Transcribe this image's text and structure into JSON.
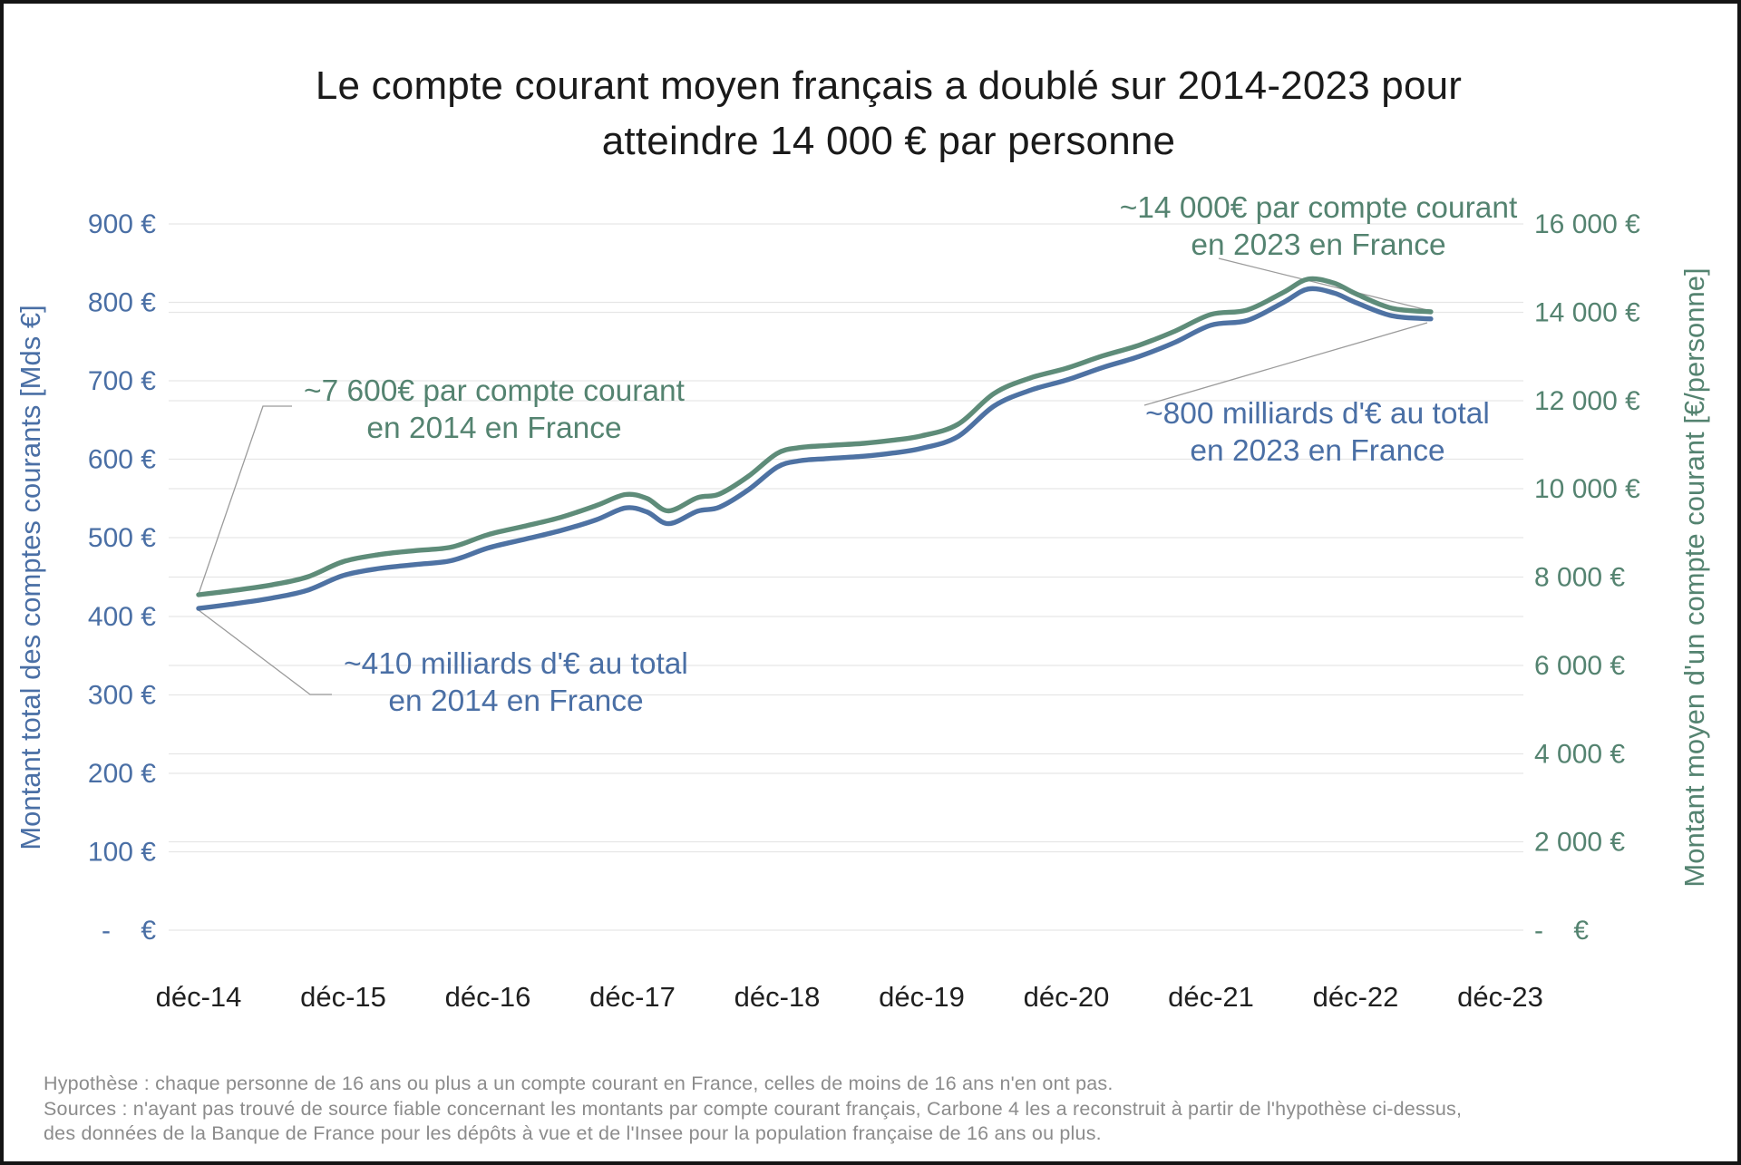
{
  "chart_data": {
    "type": "line",
    "title": "Le compte courant moyen français a doublé sur 2014-2023 pour atteindre 14 000 € par personne",
    "title_lines": [
      "Le compte courant moyen français a doublé sur 2014-2023 pour",
      "atteindre 14 000 € par personne"
    ],
    "x_tick_labels": [
      "déc-14",
      "déc-15",
      "déc-16",
      "déc-17",
      "déc-18",
      "déc-19",
      "déc-20",
      "déc-21",
      "déc-22",
      "déc-23"
    ],
    "x_unit": "années (décembre de chaque année)",
    "grid": true,
    "legend_position": "none",
    "left_axis": {
      "title": "Montant total des comptes courants [Mds €]",
      "min": 0,
      "max": 900,
      "tick_step": 100,
      "tick_labels": [
        "900 €",
        "800 €",
        "700 €",
        "600 €",
        "500 €",
        "400 €",
        "300 €",
        "200 €",
        "100 €",
        "-    €"
      ],
      "color": "#4a6fa5"
    },
    "right_axis": {
      "title": "Montant moyen d'un compte courant [€/personne]",
      "min": 0,
      "max": 16000,
      "tick_step": 2000,
      "tick_labels": [
        "16 000 €",
        "14 000 €",
        "12 000 €",
        "10 000 €",
        "8 000 €",
        "6 000 €",
        "4 000 €",
        "2 000 €",
        "-    €"
      ],
      "color": "#548370"
    },
    "series": [
      {
        "name": "Montant total des comptes courants",
        "unit": "Mds €",
        "axis": "left",
        "color": "#4e72a3",
        "points_t_years_after_dec14_value": [
          [
            0,
            410
          ],
          [
            0.25,
            416
          ],
          [
            0.5,
            423
          ],
          [
            0.75,
            433
          ],
          [
            1,
            452
          ],
          [
            1.25,
            461
          ],
          [
            1.5,
            466
          ],
          [
            1.75,
            471
          ],
          [
            2,
            487
          ],
          [
            2.25,
            498
          ],
          [
            2.5,
            509
          ],
          [
            2.75,
            523
          ],
          [
            2.95,
            538
          ],
          [
            3.1,
            533
          ],
          [
            3.25,
            518
          ],
          [
            3.45,
            534
          ],
          [
            3.6,
            539
          ],
          [
            3.8,
            561
          ],
          [
            4,
            590
          ],
          [
            4.15,
            598
          ],
          [
            4.35,
            601
          ],
          [
            4.6,
            604
          ],
          [
            4.8,
            608
          ],
          [
            5,
            614
          ],
          [
            5.25,
            629
          ],
          [
            5.5,
            668
          ],
          [
            5.75,
            688
          ],
          [
            6,
            701
          ],
          [
            6.25,
            717
          ],
          [
            6.5,
            731
          ],
          [
            6.75,
            749
          ],
          [
            7,
            771
          ],
          [
            7.25,
            777
          ],
          [
            7.5,
            800
          ],
          [
            7.67,
            817
          ],
          [
            7.85,
            812
          ],
          [
            8,
            800
          ],
          [
            8.25,
            783
          ],
          [
            8.52,
            779
          ]
        ]
      },
      {
        "name": "Montant moyen d'un compte courant",
        "unit": "€/personne",
        "axis": "right",
        "color": "#5e8c79",
        "points_t_years_after_dec14_value": [
          [
            0,
            7600
          ],
          [
            0.25,
            7700
          ],
          [
            0.5,
            7820
          ],
          [
            0.75,
            8000
          ],
          [
            1,
            8350
          ],
          [
            1.25,
            8510
          ],
          [
            1.5,
            8600
          ],
          [
            1.75,
            8680
          ],
          [
            2,
            8960
          ],
          [
            2.25,
            9150
          ],
          [
            2.5,
            9350
          ],
          [
            2.75,
            9620
          ],
          [
            2.95,
            9870
          ],
          [
            3.1,
            9780
          ],
          [
            3.25,
            9500
          ],
          [
            3.45,
            9800
          ],
          [
            3.6,
            9880
          ],
          [
            3.8,
            10280
          ],
          [
            4,
            10800
          ],
          [
            4.15,
            10930
          ],
          [
            4.35,
            10980
          ],
          [
            4.6,
            11030
          ],
          [
            4.8,
            11100
          ],
          [
            5,
            11200
          ],
          [
            5.25,
            11460
          ],
          [
            5.5,
            12160
          ],
          [
            5.75,
            12510
          ],
          [
            6,
            12730
          ],
          [
            6.25,
            13010
          ],
          [
            6.5,
            13250
          ],
          [
            6.75,
            13570
          ],
          [
            7,
            13950
          ],
          [
            7.25,
            14050
          ],
          [
            7.5,
            14450
          ],
          [
            7.67,
            14750
          ],
          [
            7.85,
            14660
          ],
          [
            8,
            14420
          ],
          [
            8.25,
            14090
          ],
          [
            8.52,
            14010
          ]
        ]
      }
    ],
    "annotations": [
      {
        "id": "avg-2014",
        "lines": [
          "~7 600€ par compte courant",
          "en 2014 en France"
        ],
        "color": "#548370"
      },
      {
        "id": "total-2014",
        "lines": [
          "~410 milliards d'€ au total",
          "en 2014 en France"
        ],
        "color": "#4a6fa5"
      },
      {
        "id": "avg-2023",
        "lines": [
          "~14 000€ par compte courant",
          "en 2023 en France"
        ],
        "color": "#548370"
      },
      {
        "id": "total-2023",
        "lines": [
          "~800 milliards d'€ au total",
          "en 2023 en France"
        ],
        "color": "#4a6fa5"
      }
    ]
  },
  "footnotes": {
    "line1": "Hypothèse : chaque personne de 16 ans ou plus a un compte courant en France, celles de moins de 16 ans n'en ont pas.",
    "line2": "Sources : n'ayant pas trouvé de source fiable concernant les montants par compte courant français, Carbone 4 les a reconstruit à partir de l'hypothèse ci-dessus,",
    "line3": "des données de la Banque de France pour les dépôts à vue et de l'Insee pour la population française de 16 ans ou plus."
  }
}
